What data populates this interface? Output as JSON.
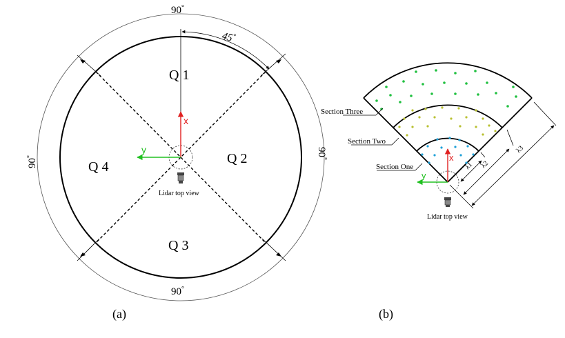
{
  "panel_a": {
    "caption": "(a)",
    "quadrants": [
      "Q 1",
      "Q 2",
      "Q 3",
      "Q 4"
    ],
    "angle_top": "90",
    "angle_left": "90",
    "angle_right": "90",
    "angle_bottom": "90",
    "degree_mark": "°",
    "angle_half": "45",
    "axis_x": "x",
    "axis_y": "y",
    "lidar_label": "Lidar top view"
  },
  "panel_b": {
    "caption": "(b)",
    "sections": [
      "Section Three",
      "Section Two",
      "Section One"
    ],
    "lambda_labels": [
      "λ1",
      "λ2",
      "λ3"
    ],
    "axis_x": "x",
    "axis_y": "y",
    "lidar_label": "Lidar top view"
  },
  "colors": {
    "x_axis": "#e02020",
    "y_axis": "#20c020",
    "section_one_points": "#1ea0d8",
    "section_two_points": "#b8c030",
    "section_three_points": "#20c040"
  }
}
